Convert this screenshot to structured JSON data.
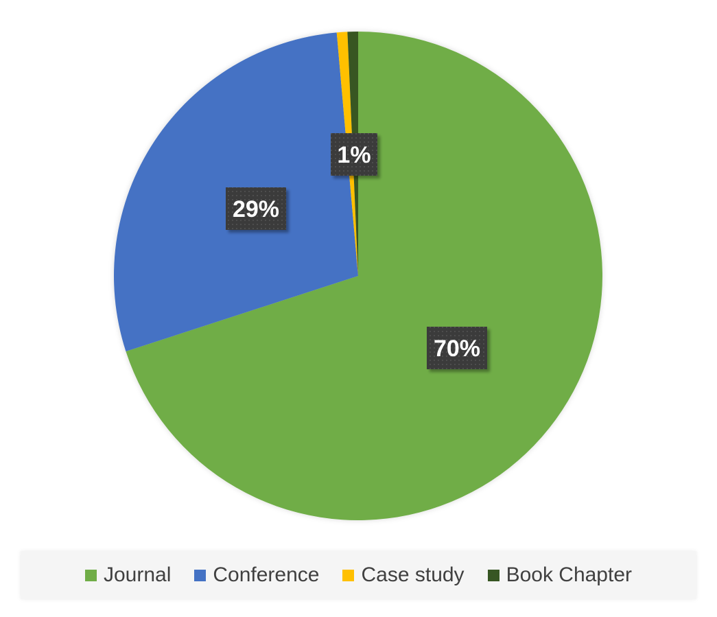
{
  "chart_data": {
    "type": "pie",
    "title": "",
    "start_angle_deg": 0,
    "direction": "clockwise",
    "slices": [
      {
        "label": "Journal",
        "value": 70,
        "display": "70%",
        "color": "#70AD47"
      },
      {
        "label": "Conference",
        "value": 28.6,
        "display": "29%",
        "color": "#4472C4"
      },
      {
        "label": "Case study",
        "value": 0.7,
        "display": "",
        "color": "#FFC000"
      },
      {
        "label": "Book Chapter",
        "value": 0.7,
        "display": "1%",
        "color": "#375623"
      }
    ],
    "legend_position": "bottom"
  },
  "legend": {
    "items": [
      {
        "label": "Journal",
        "color": "#70AD47"
      },
      {
        "label": "Conference",
        "color": "#4472C4"
      },
      {
        "label": "Case study",
        "color": "#FFC000"
      },
      {
        "label": "Book Chapter",
        "color": "#375623"
      }
    ]
  }
}
